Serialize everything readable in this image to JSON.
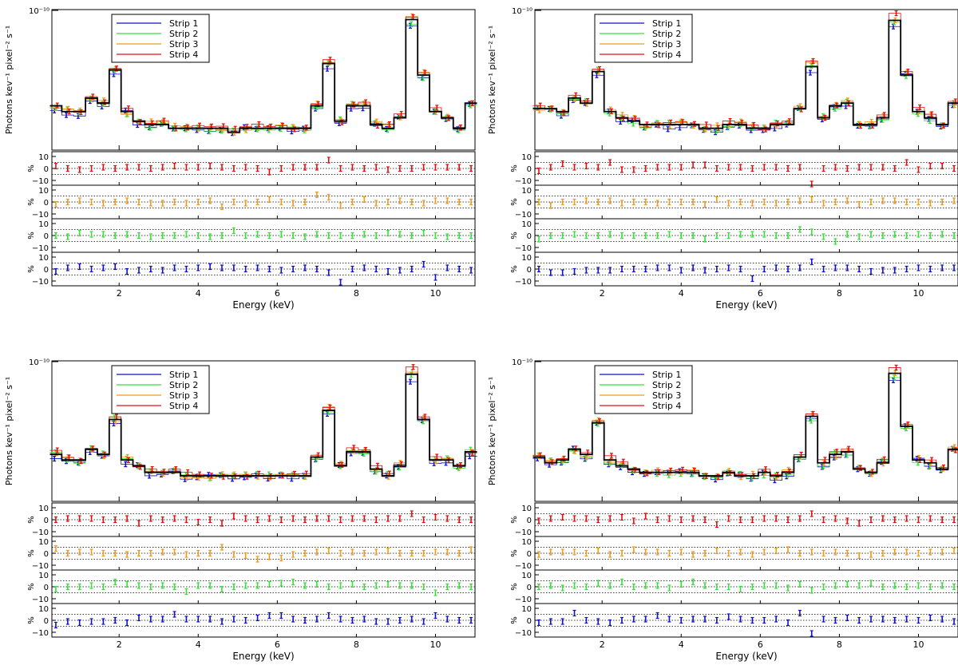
{
  "colors": {
    "strip1": "#1010c8",
    "strip2": "#38e038",
    "strip3": "#f09a20",
    "strip4": "#e01010",
    "model": "#000000"
  },
  "chart_data": [
    {
      "type": "line",
      "panel": "top-left",
      "ylabel": "Photons kev⁻¹ pixel⁻² s⁻¹",
      "xlabel": "Energy (keV)",
      "ylog": true,
      "ytick_label": "10⁻¹⁰",
      "xlim": [
        0.3,
        11.0
      ],
      "xticks": [
        "2",
        "4",
        "6",
        "8",
        "10"
      ],
      "legend": [
        "Strip 1",
        "Strip 2",
        "Strip 3",
        "Strip 4"
      ],
      "legend_position": "top-left",
      "x": [
        0.4,
        0.7,
        1.0,
        1.3,
        1.6,
        1.9,
        2.2,
        2.5,
        2.8,
        3.1,
        3.4,
        3.7,
        4.0,
        4.3,
        4.6,
        4.9,
        5.2,
        5.5,
        5.8,
        6.1,
        6.4,
        6.7,
        7.0,
        7.3,
        7.6,
        7.9,
        8.2,
        8.5,
        8.8,
        9.1,
        9.4,
        9.7,
        10.0,
        10.3,
        10.6,
        10.9
      ],
      "model": [
        26,
        24,
        24,
        29,
        27,
        43,
        24,
        21,
        20,
        20,
        19,
        19,
        19,
        19,
        19,
        18,
        19,
        19,
        19,
        19,
        19,
        19,
        26,
        47,
        21,
        26,
        26,
        20,
        19,
        22,
        87,
        40,
        24,
        22,
        19,
        27
      ],
      "residual_panels": [
        "Strip 4",
        "Strip 3",
        "Strip 2",
        "Strip 1"
      ],
      "residual_ylabel": "%",
      "residual_ticks": [
        "10",
        "0",
        "−10"
      ],
      "residuals": {
        "Strip 4": [
          2,
          0,
          -1,
          0,
          1,
          0,
          1,
          1,
          0,
          1,
          2,
          1,
          1,
          2,
          1,
          0,
          1,
          0,
          -3,
          0,
          1,
          1,
          1,
          7,
          0,
          1,
          0,
          1,
          -1,
          0,
          0,
          1,
          1,
          1,
          1,
          0
        ],
        "Strip 3": [
          -2,
          0,
          1,
          0,
          -1,
          0,
          1,
          0,
          -1,
          -1,
          0,
          -1,
          0,
          1,
          -4,
          0,
          -1,
          0,
          2,
          0,
          -1,
          0,
          6,
          4,
          -3,
          0,
          2,
          -1,
          0,
          1,
          0,
          -1,
          1,
          1,
          0,
          0
        ],
        "Strip 2": [
          0,
          -1,
          2,
          1,
          1,
          0,
          1,
          0,
          -1,
          0,
          0,
          1,
          0,
          -1,
          0,
          4,
          0,
          1,
          0,
          1,
          0,
          -1,
          1,
          0,
          0,
          0,
          1,
          0,
          2,
          1,
          0,
          2,
          0,
          -1,
          0,
          0
        ],
        "Strip 1": [
          -2,
          1,
          2,
          0,
          1,
          2,
          -2,
          -1,
          0,
          -1,
          1,
          0,
          1,
          2,
          1,
          1,
          0,
          1,
          0,
          -1,
          0,
          1,
          0,
          -3,
          -11,
          0,
          1,
          0,
          -2,
          -1,
          0,
          4,
          -7,
          1,
          0,
          -1
        ]
      }
    },
    {
      "type": "line",
      "panel": "top-right",
      "ylabel": "Photons kev⁻¹ pixel⁻² s⁻¹",
      "xlabel": "Energy (keV)",
      "ylog": true,
      "ytick_label": "10⁻¹⁰",
      "xlim": [
        0.3,
        11.0
      ],
      "xticks": [
        "2",
        "4",
        "6",
        "8",
        "10"
      ],
      "legend": [
        "Strip 1",
        "Strip 2",
        "Strip 3",
        "Strip 4"
      ],
      "legend_position": "top-left",
      "x": [
        0.4,
        0.7,
        1.0,
        1.3,
        1.6,
        1.9,
        2.2,
        2.5,
        2.8,
        3.1,
        3.4,
        3.7,
        4.0,
        4.3,
        4.6,
        4.9,
        5.2,
        5.5,
        5.8,
        6.1,
        6.4,
        6.7,
        7.0,
        7.3,
        7.6,
        7.9,
        8.2,
        8.5,
        8.8,
        9.1,
        9.4,
        9.7,
        10.0,
        10.3,
        10.6,
        10.9
      ],
      "model": [
        25,
        25,
        24,
        29,
        27,
        42,
        24,
        22,
        21,
        20,
        20,
        20,
        20,
        20,
        19,
        19,
        20,
        20,
        19,
        19,
        20,
        20,
        25,
        45,
        22,
        26,
        27,
        20,
        20,
        22,
        86,
        40,
        24,
        22,
        20,
        27
      ],
      "residual_panels": [
        "Strip 4",
        "Strip 3",
        "Strip 2",
        "Strip 1"
      ],
      "residual_ylabel": "%",
      "residual_ticks": [
        "10",
        "0",
        "−10"
      ],
      "residuals": {
        "Strip 4": [
          -2,
          1,
          4,
          1,
          2,
          1,
          5,
          -1,
          -1,
          0,
          1,
          1,
          1,
          3,
          3,
          0,
          1,
          1,
          0,
          1,
          1,
          0,
          1,
          -13,
          0,
          1,
          0,
          1,
          1,
          1,
          0,
          5,
          -1,
          2,
          2,
          0
        ],
        "Strip 3": [
          0,
          -3,
          0,
          0,
          1,
          0,
          1,
          -1,
          0,
          0,
          -1,
          0,
          0,
          0,
          -2,
          2,
          -1,
          0,
          -1,
          0,
          -1,
          0,
          1,
          2,
          -1,
          0,
          1,
          -2,
          0,
          1,
          1,
          0,
          0,
          -1,
          0,
          1
        ],
        "Strip 2": [
          -3,
          0,
          0,
          1,
          0,
          0,
          1,
          0,
          0,
          0,
          0,
          1,
          0,
          0,
          -3,
          0,
          0,
          1,
          1,
          1,
          0,
          0,
          5,
          3,
          -1,
          -5,
          1,
          -1,
          1,
          0,
          1,
          0,
          1,
          0,
          1,
          0
        ],
        "Strip 1": [
          0,
          -3,
          -3,
          -2,
          -1,
          -1,
          -1,
          0,
          0,
          0,
          1,
          1,
          -1,
          1,
          -1,
          0,
          1,
          0,
          -8,
          0,
          1,
          0,
          1,
          6,
          0,
          1,
          1,
          0,
          -2,
          -1,
          -1,
          0,
          1,
          0,
          1,
          1
        ]
      }
    },
    {
      "type": "line",
      "panel": "bottom-left",
      "ylabel": "Photons kev⁻¹ pixel⁻² s⁻¹",
      "xlabel": "Energy (keV)",
      "ylog": true,
      "ytick_label": "10⁻¹⁰",
      "xlim": [
        0.3,
        11.0
      ],
      "xticks": [
        "2",
        "4",
        "6",
        "8",
        "10"
      ],
      "legend": [
        "Strip 1",
        "Strip 2",
        "Strip 3",
        "Strip 4"
      ],
      "legend_position": "top-left",
      "x": [
        0.4,
        0.7,
        1.0,
        1.3,
        1.6,
        1.9,
        2.2,
        2.5,
        2.8,
        3.1,
        3.4,
        3.7,
        4.0,
        4.3,
        4.6,
        4.9,
        5.2,
        5.5,
        5.8,
        6.1,
        6.4,
        6.7,
        7.0,
        7.3,
        7.6,
        7.9,
        8.2,
        8.5,
        8.8,
        9.1,
        9.4,
        9.7,
        10.0,
        10.3,
        10.6,
        10.9
      ],
      "model": [
        27,
        25,
        25,
        29,
        27,
        44,
        25,
        23,
        21,
        21,
        21,
        20,
        20,
        20,
        20,
        20,
        20,
        20,
        20,
        20,
        20,
        20,
        26,
        50,
        23,
        28,
        28,
        22,
        20,
        23,
        83,
        44,
        25,
        25,
        23,
        28
      ],
      "residual_panels": [
        "Strip 4",
        "Strip 3",
        "Strip 2",
        "Strip 1"
      ],
      "residual_ylabel": "%",
      "residual_ticks": [
        "10",
        "0",
        "−10"
      ],
      "residuals": {
        "Strip 4": [
          0,
          1,
          1,
          1,
          0,
          0,
          1,
          -3,
          1,
          0,
          1,
          0,
          -2,
          0,
          -3,
          3,
          1,
          0,
          1,
          0,
          1,
          0,
          1,
          1,
          0,
          1,
          1,
          0,
          1,
          1,
          5,
          0,
          2,
          1,
          0,
          0
        ],
        "Strip 3": [
          4,
          0,
          1,
          1,
          0,
          0,
          -1,
          0,
          0,
          1,
          1,
          -1,
          0,
          0,
          5,
          -1,
          -2,
          -5,
          -3,
          -4,
          -1,
          0,
          1,
          2,
          0,
          1,
          0,
          1,
          2,
          0,
          0,
          0,
          1,
          1,
          0,
          3
        ],
        "Strip 2": [
          -2,
          0,
          0,
          1,
          0,
          4,
          2,
          1,
          0,
          1,
          0,
          -4,
          1,
          1,
          -2,
          0,
          1,
          1,
          2,
          3,
          4,
          1,
          2,
          0,
          1,
          2,
          0,
          1,
          2,
          1,
          1,
          0,
          -5,
          0,
          1,
          0
        ],
        "Strip 1": [
          -4,
          -1,
          -2,
          -1,
          -1,
          0,
          -2,
          2,
          1,
          1,
          5,
          1,
          1,
          1,
          -1,
          1,
          0,
          2,
          4,
          4,
          1,
          0,
          1,
          4,
          1,
          0,
          1,
          -1,
          -1,
          0,
          1,
          -1,
          4,
          1,
          0,
          0
        ]
      }
    },
    {
      "type": "line",
      "panel": "bottom-right",
      "ylabel": "Photons kev⁻¹ pixel⁻² s⁻¹",
      "xlabel": "Energy (keV)",
      "ylog": true,
      "ytick_label": "10⁻¹⁰",
      "xlim": [
        0.3,
        11.0
      ],
      "xticks": [
        "2",
        "4",
        "6",
        "8",
        "10"
      ],
      "legend": [
        "Strip 1",
        "Strip 2",
        "Strip 3",
        "Strip 4"
      ],
      "legend_position": "top-left",
      "x": [
        0.4,
        0.7,
        1.0,
        1.3,
        1.6,
        1.9,
        2.2,
        2.5,
        2.8,
        3.1,
        3.4,
        3.7,
        4.0,
        4.3,
        4.6,
        4.9,
        5.2,
        5.5,
        5.8,
        6.1,
        6.4,
        6.7,
        7.0,
        7.3,
        7.6,
        7.9,
        8.2,
        8.5,
        8.8,
        9.1,
        9.4,
        9.7,
        10.0,
        10.3,
        10.6,
        10.9
      ],
      "model": [
        26,
        24,
        25,
        29,
        27,
        42,
        25,
        23,
        22,
        21,
        21,
        21,
        21,
        21,
        20,
        20,
        21,
        20,
        20,
        21,
        20,
        21,
        26,
        46,
        24,
        27,
        28,
        22,
        21,
        24,
        84,
        40,
        25,
        24,
        22,
        29
      ],
      "residual_panels": [
        "Strip 4",
        "Strip 3",
        "Strip 2",
        "Strip 1"
      ],
      "residual_ylabel": "%",
      "residual_ticks": [
        "10",
        "0",
        "−10"
      ],
      "residuals": {
        "Strip 4": [
          -1,
          1,
          2,
          1,
          1,
          0,
          1,
          2,
          -1,
          3,
          0,
          1,
          0,
          1,
          0,
          -4,
          1,
          0,
          0,
          1,
          1,
          0,
          1,
          5,
          0,
          1,
          -1,
          -3,
          0,
          1,
          0,
          1,
          0,
          1,
          0,
          0
        ],
        "Strip 3": [
          -1,
          1,
          1,
          1,
          0,
          2,
          -1,
          0,
          3,
          1,
          1,
          0,
          1,
          -1,
          0,
          2,
          0,
          1,
          -1,
          1,
          2,
          3,
          0,
          1,
          0,
          1,
          0,
          -2,
          -1,
          0,
          1,
          1,
          0,
          1,
          1,
          2
        ],
        "Strip 2": [
          0,
          1,
          -1,
          1,
          0,
          3,
          1,
          4,
          0,
          1,
          1,
          -1,
          2,
          4,
          1,
          0,
          0,
          -2,
          0,
          1,
          1,
          -1,
          2,
          -3,
          0,
          1,
          2,
          1,
          3,
          0,
          1,
          0,
          1,
          0,
          1,
          0
        ],
        "Strip 1": [
          -2,
          -1,
          -1,
          6,
          0,
          -1,
          -2,
          0,
          1,
          1,
          4,
          1,
          0,
          1,
          1,
          0,
          3,
          1,
          0,
          0,
          1,
          -2,
          6,
          -11,
          1,
          0,
          2,
          0,
          1,
          1,
          0,
          1,
          0,
          2,
          1,
          -1
        ]
      }
    }
  ]
}
